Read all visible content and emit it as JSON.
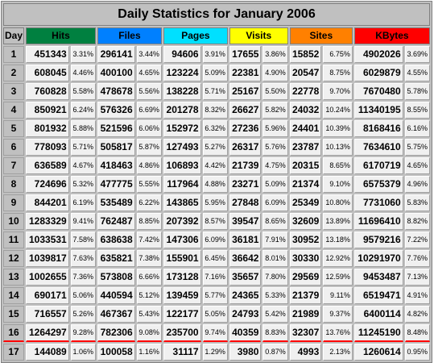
{
  "title": "Daily Statistics for January 2006",
  "columns": [
    {
      "key": "day",
      "label": "Day",
      "color": "#c0c0c0",
      "text": "#000000"
    },
    {
      "key": "hits",
      "label": "Hits",
      "color": "#008040",
      "text": "#000000"
    },
    {
      "key": "files",
      "label": "Files",
      "color": "#0080ff",
      "text": "#000000"
    },
    {
      "key": "pages",
      "label": "Pages",
      "color": "#00e0ff",
      "text": "#000000"
    },
    {
      "key": "visits",
      "label": "Visits",
      "color": "#ffff00",
      "text": "#000000"
    },
    {
      "key": "sites",
      "label": "Sites",
      "color": "#ff8000",
      "text": "#000000"
    },
    {
      "key": "kbytes",
      "label": "KBytes",
      "color": "#ff0000",
      "text": "#000000"
    }
  ],
  "highlight_day": "16",
  "rows": [
    {
      "day": "1",
      "hits": "451343",
      "hits_p": "3.31%",
      "files": "296141",
      "files_p": "3.44%",
      "pages": "94606",
      "pages_p": "3.91%",
      "visits": "17655",
      "visits_p": "3.86%",
      "sites": "15852",
      "sites_p": "6.75%",
      "kbytes": "4902026",
      "kbytes_p": "3.69%"
    },
    {
      "day": "2",
      "hits": "608045",
      "hits_p": "4.46%",
      "files": "400100",
      "files_p": "4.65%",
      "pages": "123224",
      "pages_p": "5.09%",
      "visits": "22381",
      "visits_p": "4.90%",
      "sites": "20547",
      "sites_p": "8.75%",
      "kbytes": "6029879",
      "kbytes_p": "4.55%"
    },
    {
      "day": "3",
      "hits": "760828",
      "hits_p": "5.58%",
      "files": "478678",
      "files_p": "5.56%",
      "pages": "138228",
      "pages_p": "5.71%",
      "visits": "25167",
      "visits_p": "5.50%",
      "sites": "22778",
      "sites_p": "9.70%",
      "kbytes": "7670480",
      "kbytes_p": "5.78%"
    },
    {
      "day": "4",
      "hits": "850921",
      "hits_p": "6.24%",
      "files": "576326",
      "files_p": "6.69%",
      "pages": "201278",
      "pages_p": "8.32%",
      "visits": "26627",
      "visits_p": "5.82%",
      "sites": "24032",
      "sites_p": "10.24%",
      "kbytes": "11340195",
      "kbytes_p": "8.55%"
    },
    {
      "day": "5",
      "hits": "801932",
      "hits_p": "5.88%",
      "files": "521596",
      "files_p": "6.06%",
      "pages": "152972",
      "pages_p": "6.32%",
      "visits": "27236",
      "visits_p": "5.96%",
      "sites": "24401",
      "sites_p": "10.39%",
      "kbytes": "8168416",
      "kbytes_p": "6.16%"
    },
    {
      "day": "6",
      "hits": "778093",
      "hits_p": "5.71%",
      "files": "505817",
      "files_p": "5.87%",
      "pages": "127493",
      "pages_p": "5.27%",
      "visits": "26317",
      "visits_p": "5.76%",
      "sites": "23787",
      "sites_p": "10.13%",
      "kbytes": "7634610",
      "kbytes_p": "5.75%"
    },
    {
      "day": "7",
      "hits": "636589",
      "hits_p": "4.67%",
      "files": "418463",
      "files_p": "4.86%",
      "pages": "106893",
      "pages_p": "4.42%",
      "visits": "21739",
      "visits_p": "4.75%",
      "sites": "20315",
      "sites_p": "8.65%",
      "kbytes": "6170719",
      "kbytes_p": "4.65%"
    },
    {
      "day": "8",
      "hits": "724696",
      "hits_p": "5.32%",
      "files": "477775",
      "files_p": "5.55%",
      "pages": "117964",
      "pages_p": "4.88%",
      "visits": "23271",
      "visits_p": "5.09%",
      "sites": "21374",
      "sites_p": "9.10%",
      "kbytes": "6575379",
      "kbytes_p": "4.96%"
    },
    {
      "day": "9",
      "hits": "844201",
      "hits_p": "6.19%",
      "files": "535489",
      "files_p": "6.22%",
      "pages": "143865",
      "pages_p": "5.95%",
      "visits": "27848",
      "visits_p": "6.09%",
      "sites": "25349",
      "sites_p": "10.80%",
      "kbytes": "7731060",
      "kbytes_p": "5.83%"
    },
    {
      "day": "10",
      "hits": "1283329",
      "hits_p": "9.41%",
      "files": "762487",
      "files_p": "8.85%",
      "pages": "207392",
      "pages_p": "8.57%",
      "visits": "39547",
      "visits_p": "8.65%",
      "sites": "32609",
      "sites_p": "13.89%",
      "kbytes": "11696410",
      "kbytes_p": "8.82%"
    },
    {
      "day": "11",
      "hits": "1033531",
      "hits_p": "7.58%",
      "files": "638638",
      "files_p": "7.42%",
      "pages": "147306",
      "pages_p": "6.09%",
      "visits": "36181",
      "visits_p": "7.91%",
      "sites": "30952",
      "sites_p": "13.18%",
      "kbytes": "9579216",
      "kbytes_p": "7.22%"
    },
    {
      "day": "12",
      "hits": "1039817",
      "hits_p": "7.63%",
      "files": "635821",
      "files_p": "7.38%",
      "pages": "155901",
      "pages_p": "6.45%",
      "visits": "36642",
      "visits_p": "8.01%",
      "sites": "30330",
      "sites_p": "12.92%",
      "kbytes": "10291970",
      "kbytes_p": "7.76%"
    },
    {
      "day": "13",
      "hits": "1002655",
      "hits_p": "7.36%",
      "files": "573808",
      "files_p": "6.66%",
      "pages": "173128",
      "pages_p": "7.16%",
      "visits": "35657",
      "visits_p": "7.80%",
      "sites": "29569",
      "sites_p": "12.59%",
      "kbytes": "9453487",
      "kbytes_p": "7.13%"
    },
    {
      "day": "14",
      "hits": "690171",
      "hits_p": "5.06%",
      "files": "440594",
      "files_p": "5.12%",
      "pages": "139459",
      "pages_p": "5.77%",
      "visits": "24365",
      "visits_p": "5.33%",
      "sites": "21379",
      "sites_p": "9.11%",
      "kbytes": "6519471",
      "kbytes_p": "4.91%"
    },
    {
      "day": "15",
      "hits": "716557",
      "hits_p": "5.26%",
      "files": "467367",
      "files_p": "5.43%",
      "pages": "122177",
      "pages_p": "5.05%",
      "visits": "24793",
      "visits_p": "5.42%",
      "sites": "21989",
      "sites_p": "9.37%",
      "kbytes": "6400114",
      "kbytes_p": "4.82%"
    },
    {
      "day": "16",
      "hits": "1264297",
      "hits_p": "9.28%",
      "files": "782306",
      "files_p": "9.08%",
      "pages": "235700",
      "pages_p": "9.74%",
      "visits": "40359",
      "visits_p": "8.83%",
      "sites": "32307",
      "sites_p": "13.76%",
      "kbytes": "11245190",
      "kbytes_p": "8.48%"
    },
    {
      "day": "17",
      "hits": "144089",
      "hits_p": "1.06%",
      "files": "100058",
      "files_p": "1.16%",
      "pages": "31117",
      "pages_p": "1.29%",
      "visits": "3980",
      "visits_p": "0.87%",
      "sites": "4993",
      "sites_p": "2.13%",
      "kbytes": "1260614",
      "kbytes_p": "0.95%"
    }
  ]
}
